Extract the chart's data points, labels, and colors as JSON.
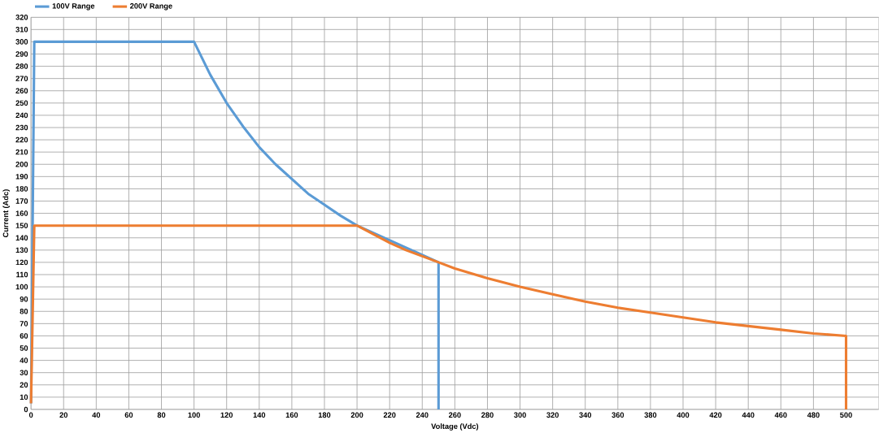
{
  "chart_data": {
    "type": "line",
    "xlabel": "Voltage  (Vdc)",
    "ylabel": "Current (Adc)",
    "xlim": [
      0,
      520
    ],
    "ylim": [
      0,
      320
    ],
    "xticks": [
      0,
      20,
      40,
      60,
      80,
      100,
      120,
      140,
      160,
      180,
      200,
      220,
      240,
      260,
      280,
      300,
      320,
      340,
      360,
      380,
      400,
      420,
      440,
      460,
      480,
      500
    ],
    "yticks": [
      0,
      10,
      20,
      30,
      40,
      50,
      60,
      70,
      80,
      90,
      100,
      110,
      120,
      130,
      140,
      150,
      160,
      170,
      180,
      190,
      200,
      210,
      220,
      230,
      240,
      250,
      260,
      270,
      280,
      290,
      300,
      310,
      320
    ],
    "grid": true,
    "legend": "top",
    "marker": "none",
    "line_style": "solid",
    "series": [
      {
        "name": "100V Range",
        "color": "#5b9bd5",
        "x": [
          0,
          2,
          100,
          110,
          120,
          130,
          140,
          150,
          160,
          170,
          180,
          190,
          200,
          210,
          220,
          230,
          240,
          250,
          250
        ],
        "values": [
          5,
          300,
          300,
          273,
          250,
          231,
          214,
          200,
          188,
          176,
          167,
          158,
          150,
          null,
          null,
          null,
          null,
          120,
          0
        ]
      },
      {
        "name": "200V Range",
        "color": "#ed7d31",
        "x": [
          0,
          2,
          200,
          210,
          220,
          230,
          240,
          250,
          260,
          280,
          300,
          320,
          340,
          360,
          380,
          400,
          420,
          440,
          460,
          480,
          500,
          500
        ],
        "values": [
          5,
          150,
          150,
          143,
          136,
          130,
          125,
          120,
          115,
          107,
          100,
          94,
          88,
          83,
          79,
          75,
          71,
          68,
          65,
          62,
          60,
          0
        ]
      }
    ]
  }
}
